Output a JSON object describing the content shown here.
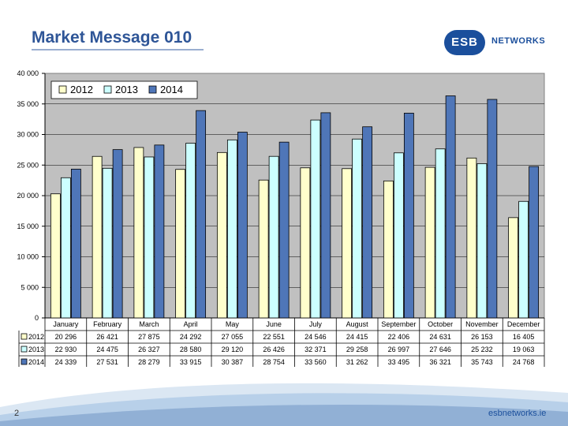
{
  "header": {
    "title": "Market Message 010"
  },
  "logo": {
    "badge": "ESB",
    "text": "NETWORKS"
  },
  "footer": {
    "page_number": "2",
    "url": "esbnetworks.ie"
  },
  "colors": {
    "title": "#2e5597",
    "brand": "#1b4f9c",
    "plot_bg": "#c0c0c0",
    "grid": "#000000"
  },
  "chart_data": {
    "type": "bar",
    "title": "",
    "xlabel": "",
    "ylabel": "",
    "categories": [
      "January",
      "February",
      "March",
      "April",
      "May",
      "June",
      "July",
      "August",
      "September",
      "October",
      "November",
      "December"
    ],
    "series": [
      {
        "name": "2012",
        "color": "#ffffcc",
        "values": [
          20296,
          26421,
          27875,
          24292,
          27055,
          22551,
          24546,
          24415,
          22406,
          24631,
          26153,
          16405
        ],
        "labels": [
          "20 296",
          "26 421",
          "27 875",
          "24 292",
          "27 055",
          "22 551",
          "24 546",
          "24 415",
          "22 406",
          "24 631",
          "26 153",
          "16 405"
        ]
      },
      {
        "name": "2013",
        "color": "#ccffff",
        "values": [
          22930,
          24475,
          26327,
          28580,
          29120,
          26426,
          32371,
          29258,
          26997,
          27646,
          25232,
          19063
        ],
        "labels": [
          "22 930",
          "24 475",
          "26 327",
          "28 580",
          "29 120",
          "26 426",
          "32 371",
          "29 258",
          "26 997",
          "27 646",
          "25 232",
          "19 063"
        ]
      },
      {
        "name": "2014",
        "color": "#4f76b8",
        "values": [
          24339,
          27531,
          28279,
          33915,
          30387,
          28754,
          33560,
          31262,
          33495,
          36321,
          35743,
          24768
        ],
        "labels": [
          "24 339",
          "27 531",
          "28 279",
          "33 915",
          "30 387",
          "28 754",
          "33 560",
          "31 262",
          "33 495",
          "36 321",
          "35 743",
          "24 768"
        ]
      }
    ],
    "ylim": [
      0,
      40000
    ],
    "yticks": [
      0,
      5000,
      10000,
      15000,
      20000,
      25000,
      30000,
      35000,
      40000
    ],
    "ytick_labels": [
      "0",
      "5 000",
      "10 000",
      "15 000",
      "20 000",
      "25 000",
      "30 000",
      "35 000",
      "40 000"
    ],
    "grid": true,
    "legend": "top-left",
    "data_table": true
  }
}
